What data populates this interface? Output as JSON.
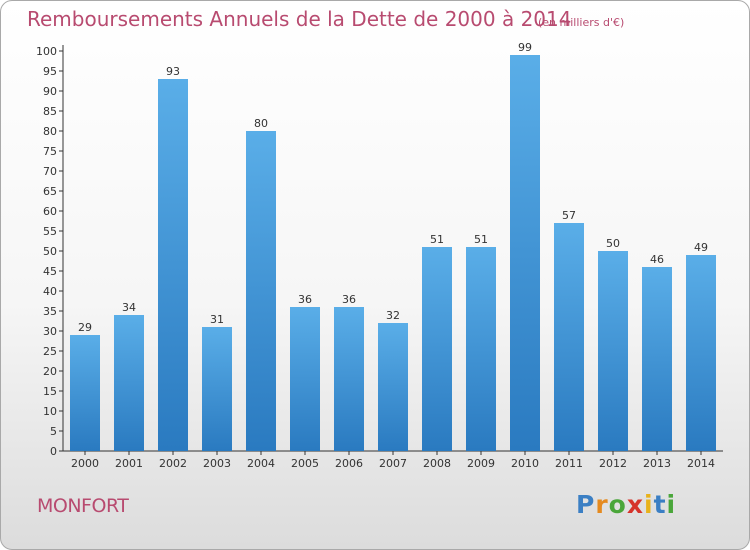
{
  "chart_data": {
    "type": "bar",
    "title": "Remboursements Annuels de la Dette de 2000 à 2014",
    "subtitle": "(en milliers d'€)",
    "categories": [
      "2000",
      "2001",
      "2002",
      "2003",
      "2004",
      "2005",
      "2006",
      "2007",
      "2008",
      "2009",
      "2010",
      "2011",
      "2012",
      "2013",
      "2014"
    ],
    "values": [
      29,
      34,
      93,
      31,
      80,
      36,
      36,
      32,
      51,
      51,
      99,
      57,
      50,
      46,
      49
    ],
    "ylim": [
      0,
      100
    ],
    "yticks": [
      0,
      5,
      10,
      15,
      20,
      25,
      30,
      35,
      40,
      45,
      50,
      55,
      60,
      65,
      70,
      75,
      80,
      85,
      90,
      95,
      100
    ],
    "grid": false,
    "bar_color_top": "#5aaee8",
    "bar_color_bottom": "#2a7ac0"
  },
  "footer": {
    "location": "MONFORT",
    "logo": "Proxiti"
  },
  "colors": {
    "title": "#b84b70",
    "axis": "#333333"
  }
}
